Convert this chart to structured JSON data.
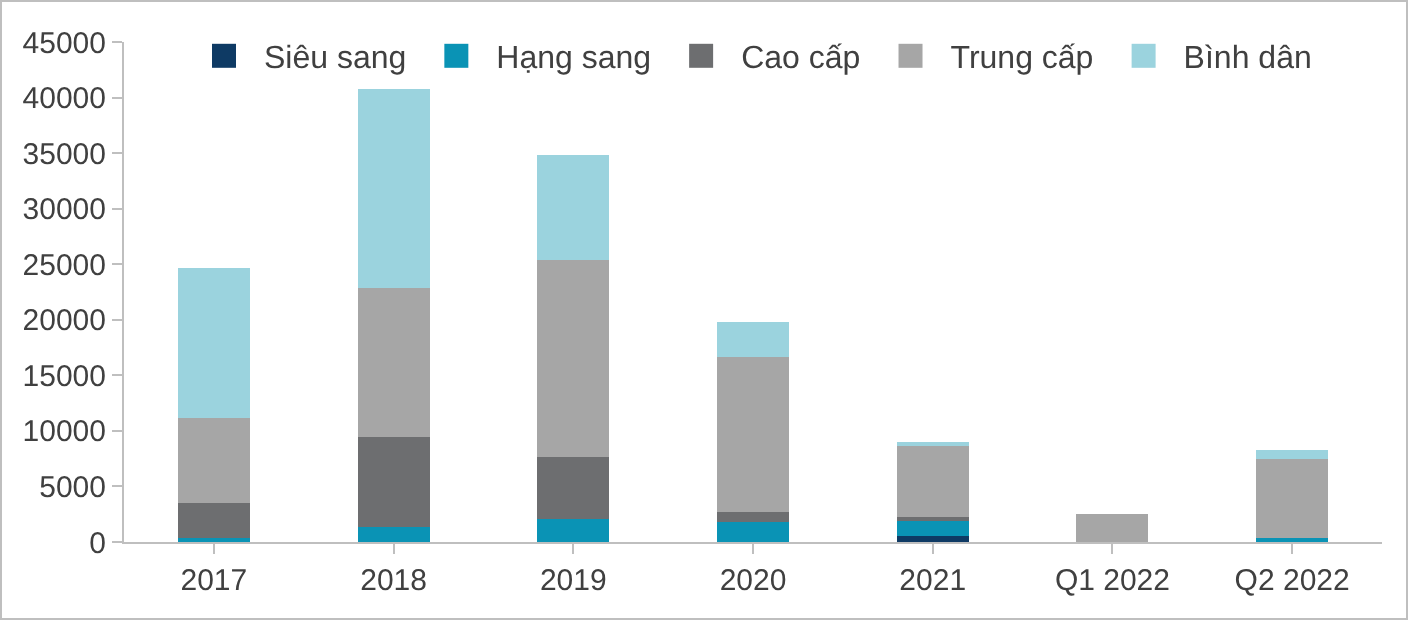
{
  "chart_data": {
    "type": "bar",
    "stacked": true,
    "categories": [
      "2017",
      "2018",
      "2019",
      "2020",
      "2021",
      "Q1 2022",
      "Q2 2022"
    ],
    "series": [
      {
        "name": "Siêu sang",
        "color": "#0e3a64",
        "values": [
          0,
          0,
          0,
          0,
          500,
          0,
          0
        ]
      },
      {
        "name": "Hạng sang",
        "color": "#0a93b5",
        "values": [
          400,
          1360,
          2040,
          1790,
          1360,
          0,
          370
        ]
      },
      {
        "name": "Cao cấp",
        "color": "#6d6e70",
        "values": [
          3100,
          8100,
          5600,
          870,
          430,
          0,
          0
        ]
      },
      {
        "name": "Trung cấp",
        "color": "#a6a6a6",
        "values": [
          7700,
          13400,
          17700,
          14000,
          6440,
          2480,
          7100
        ]
      },
      {
        "name": "Bình dân",
        "color": "#9bd3de",
        "values": [
          13500,
          17900,
          9500,
          3100,
          240,
          0,
          800
        ]
      }
    ],
    "ylim": [
      0,
      45000
    ],
    "yticks": [
      0,
      5000,
      10000,
      15000,
      20000,
      25000,
      30000,
      35000,
      40000,
      45000
    ],
    "grid": false,
    "legend": "top"
  }
}
